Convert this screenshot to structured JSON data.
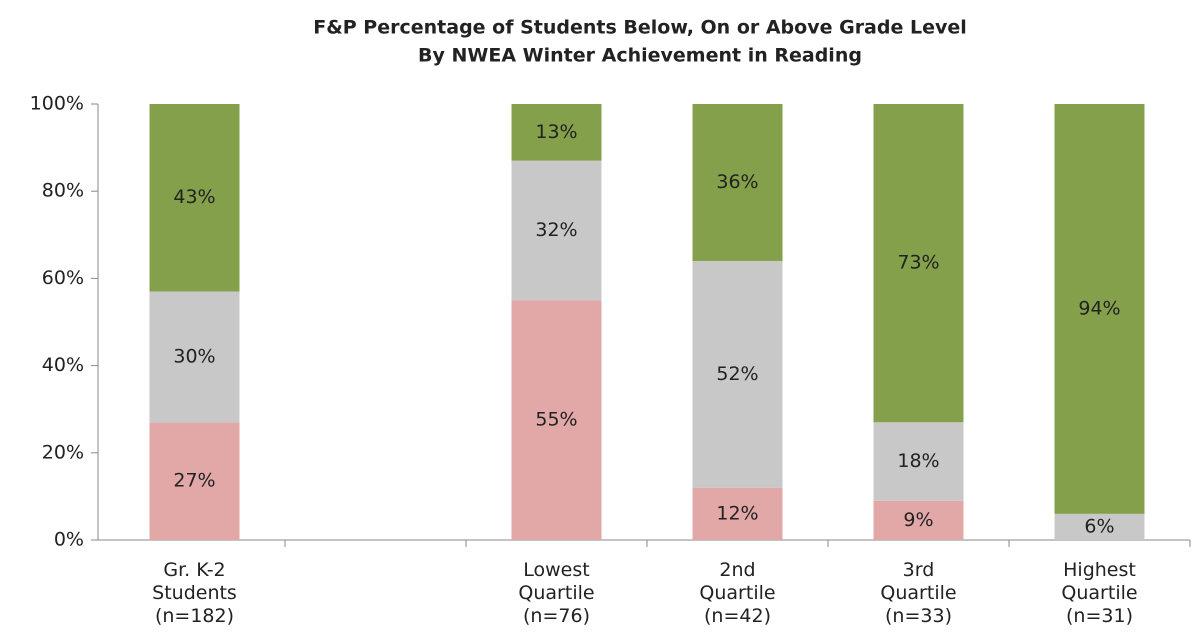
{
  "chart_data": {
    "type": "stacked_bar",
    "title": [
      "F&P Percentage of Students Below, On or Above Grade Level",
      "By NWEA Winter Achievement in Reading"
    ],
    "categories": [
      "Gr. K-2\nStudents\n(n=182)",
      null,
      "Lowest\nQuartile\n(n=76)",
      "2nd\nQuartile\n(n=42)",
      "3rd\nQuartile\n(n=33)",
      "Highest\nQuartile\n(n=31)"
    ],
    "series": [
      {
        "color": "#e2a8a7",
        "values": [
          27,
          null,
          55,
          12,
          9,
          null
        ],
        "value_labels": [
          "27%",
          null,
          "55%",
          "12%",
          "9%",
          null
        ]
      },
      {
        "color": "#c8c8c8",
        "values": [
          30,
          null,
          32,
          52,
          18,
          6
        ],
        "value_labels": [
          "30%",
          null,
          "32%",
          "52%",
          "18%",
          "6%"
        ]
      },
      {
        "color": "#84a04a",
        "values": [
          43,
          null,
          13,
          36,
          73,
          94
        ],
        "value_labels": [
          "43%",
          null,
          "13%",
          "36%",
          "73%",
          "94%"
        ]
      }
    ],
    "ylim": [
      0,
      100
    ],
    "yticks": [
      {
        "value": 0,
        "label": "0%"
      },
      {
        "value": 20,
        "label": "20%"
      },
      {
        "value": 40,
        "label": "40%"
      },
      {
        "value": 60,
        "label": "60%"
      },
      {
        "value": 80,
        "label": "80%"
      },
      {
        "value": 100,
        "label": "100%"
      }
    ]
  }
}
